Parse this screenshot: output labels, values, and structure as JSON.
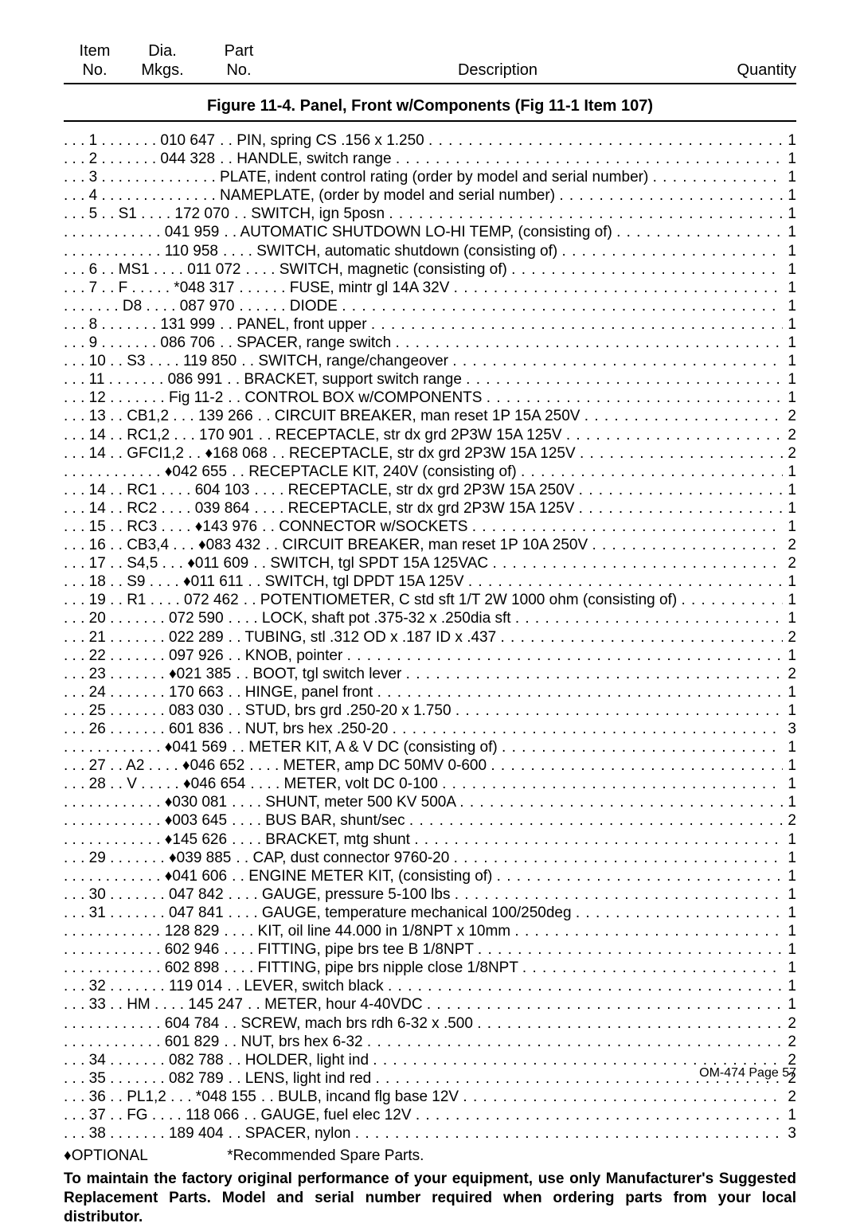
{
  "header": {
    "item_line1": "Item",
    "item_line2": "No.",
    "dia_line1": "Dia.",
    "dia_line2": "Mkgs.",
    "part_line1": "Part",
    "part_line2": "No.",
    "desc": "Description",
    "qty": "Quantity"
  },
  "figure_title": "Figure 11-4. Panel, Front w/Components (Fig 11-1 Item 107)",
  "footnote_optional": "♦OPTIONAL",
  "footnote_recommended": "*Recommended Spare Parts.",
  "advisory": "To maintain the factory original performance of your equipment, use only Manufacturer's Suggested Replacement Parts. Model and serial number required when ordering parts from your local distributor.",
  "page_footer": "OM-474 Page 57",
  "rows": [
    {
      "item": "1",
      "dia": "",
      "part": "010 647",
      "desc": "PIN, spring CS .156 x 1.250",
      "qty": "1",
      "indent": 1
    },
    {
      "item": "2",
      "dia": "",
      "part": "044 328",
      "desc": "HANDLE, switch range",
      "qty": "1",
      "indent": 1
    },
    {
      "item": "3",
      "dia": "",
      "part": "",
      "desc": "PLATE, indent control rating (order by model and serial number)",
      "qty": "1",
      "indent": 1,
      "no_dots_after_desc": true
    },
    {
      "item": "4",
      "dia": "",
      "part": "",
      "desc": "NAMEPLATE, (order by model and serial number)",
      "qty": "1",
      "indent": 1
    },
    {
      "item": "5",
      "dia": "S1",
      "part": "172 070",
      "desc": "SWITCH, ign 5posn",
      "qty": "1",
      "indent": 1
    },
    {
      "item": "",
      "dia": "",
      "part": "041 959",
      "desc": "AUTOMATIC SHUTDOWN LO-HI TEMP, (consisting of)",
      "qty": "1",
      "indent": 1
    },
    {
      "item": "",
      "dia": "",
      "part": "110 958",
      "desc": "SWITCH, automatic shutdown (consisting of)",
      "qty": "1",
      "indent": 2
    },
    {
      "item": "6",
      "dia": "MS1",
      "part": "011 072",
      "desc": "SWITCH, magnetic (consisting of)",
      "qty": "1",
      "indent": 2
    },
    {
      "item": "7",
      "dia": "F",
      "part": "*048 317",
      "desc": "FUSE, mintr gl 14A 32V",
      "qty": "1",
      "indent": 3
    },
    {
      "item": "",
      "dia": "D8",
      "part": "087 970",
      "desc": "DIODE",
      "qty": "1",
      "indent": 3
    },
    {
      "item": "8",
      "dia": "",
      "part": "131 999",
      "desc": "PANEL, front upper",
      "qty": "1",
      "indent": 1
    },
    {
      "item": "9",
      "dia": "",
      "part": "086 706",
      "desc": "SPACER, range switch",
      "qty": "1",
      "indent": 1
    },
    {
      "item": "10",
      "dia": "S3",
      "part": "119 850",
      "desc": "SWITCH, range/changeover",
      "qty": "1",
      "indent": 1
    },
    {
      "item": "11",
      "dia": "",
      "part": "086 991",
      "desc": "BRACKET, support switch range",
      "qty": "1",
      "indent": 1
    },
    {
      "item": "12",
      "dia": "",
      "part": "Fig 11-2",
      "desc": "CONTROL BOX w/COMPONENTS",
      "qty": "1",
      "indent": 1
    },
    {
      "item": "13",
      "dia": "CB1,2",
      "part": "139 266",
      "desc": "CIRCUIT BREAKER, man reset 1P 15A 250V",
      "qty": "2",
      "indent": 1
    },
    {
      "item": "14",
      "dia": "RC1,2",
      "part": "170 901",
      "desc": "RECEPTACLE, str dx grd 2P3W 15A 125V",
      "qty": "2",
      "indent": 1
    },
    {
      "item": "14",
      "dia": "GFCI1,2",
      "part": "♦168 068",
      "desc": "RECEPTACLE, str dx grd 2P3W 15A 125V",
      "qty": "2",
      "indent": 1
    },
    {
      "item": "",
      "dia": "",
      "part": "♦042 655",
      "desc": "RECEPTACLE KIT, 240V (consisting of)",
      "qty": "1",
      "indent": 1
    },
    {
      "item": "14",
      "dia": "RC1",
      "part": "604 103",
      "desc": "RECEPTACLE, str dx grd 2P3W 15A 250V",
      "qty": "1",
      "indent": 2
    },
    {
      "item": "14",
      "dia": "RC2",
      "part": "039 864",
      "desc": "RECEPTACLE, str dx grd 2P3W 15A 125V",
      "qty": "1",
      "indent": 2
    },
    {
      "item": "15",
      "dia": "RC3",
      "part": "♦143 976",
      "desc": "CONNECTOR w/SOCKETS",
      "qty": "1",
      "indent": 1
    },
    {
      "item": "16",
      "dia": "CB3,4",
      "part": "♦083 432",
      "desc": "CIRCUIT BREAKER, man reset 1P 10A 250V",
      "qty": "2",
      "indent": 1
    },
    {
      "item": "17",
      "dia": "S4,5",
      "part": "♦011 609",
      "desc": "SWITCH, tgl SPDT 15A 125VAC",
      "qty": "2",
      "indent": 1
    },
    {
      "item": "18",
      "dia": "S9",
      "part": "♦011 611",
      "desc": "SWITCH, tgl DPDT 15A 125V",
      "qty": "1",
      "indent": 1
    },
    {
      "item": "19",
      "dia": "R1",
      "part": "072 462",
      "desc": "POTENTIOMETER, C std sft 1/T 2W 1000 ohm (consisting of)",
      "qty": "1",
      "indent": 1
    },
    {
      "item": "20",
      "dia": "",
      "part": "072 590",
      "desc": "LOCK, shaft pot .375-32 x .250dia sft",
      "qty": "1",
      "indent": 2
    },
    {
      "item": "21",
      "dia": "",
      "part": "022 289",
      "desc": "TUBING, stl .312 OD x .187 ID x .437",
      "qty": "2",
      "indent": 1
    },
    {
      "item": "22",
      "dia": "",
      "part": "097 926",
      "desc": "KNOB, pointer",
      "qty": "1",
      "indent": 1
    },
    {
      "item": "23",
      "dia": "",
      "part": "♦021 385",
      "desc": "BOOT, tgl switch lever",
      "qty": "2",
      "indent": 1
    },
    {
      "item": "24",
      "dia": "",
      "part": "170 663",
      "desc": "HINGE, panel front",
      "qty": "1",
      "indent": 1
    },
    {
      "item": "25",
      "dia": "",
      "part": "083 030",
      "desc": "STUD, brs grd .250-20 x 1.750",
      "qty": "1",
      "indent": 1
    },
    {
      "item": "26",
      "dia": "",
      "part": "601 836",
      "desc": "NUT, brs hex .250-20",
      "qty": "3",
      "indent": 1
    },
    {
      "item": "",
      "dia": "",
      "part": "♦041 569",
      "desc": "METER KIT, A & V DC (consisting of)",
      "qty": "1",
      "indent": 1
    },
    {
      "item": "27",
      "dia": "A2",
      "part": "♦046 652",
      "desc": "METER, amp DC 50MV 0-600",
      "qty": "1",
      "indent": 2
    },
    {
      "item": "28",
      "dia": "V",
      "part": "♦046 654",
      "desc": "METER, volt DC 0-100",
      "qty": "1",
      "indent": 2
    },
    {
      "item": "",
      "dia": "",
      "part": "♦030 081",
      "desc": "SHUNT, meter 500 KV 500A",
      "qty": "1",
      "indent": 2
    },
    {
      "item": "",
      "dia": "",
      "part": "♦003 645",
      "desc": "BUS BAR, shunt/sec",
      "qty": "2",
      "indent": 2
    },
    {
      "item": "",
      "dia": "",
      "part": "♦145 626",
      "desc": "BRACKET, mtg shunt",
      "qty": "1",
      "indent": 2
    },
    {
      "item": "29",
      "dia": "",
      "part": "♦039 885",
      "desc": "CAP, dust connector 9760-20",
      "qty": "1",
      "indent": 1
    },
    {
      "item": "",
      "dia": "",
      "part": "♦041 606",
      "desc": "ENGINE METER KIT, (consisting of)",
      "qty": "1",
      "indent": 1
    },
    {
      "item": "30",
      "dia": "",
      "part": "047 842",
      "desc": "GAUGE, pressure 5-100 lbs",
      "qty": "1",
      "indent": 2
    },
    {
      "item": "31",
      "dia": "",
      "part": "047 841",
      "desc": "GAUGE, temperature mechanical 100/250deg",
      "qty": "1",
      "indent": 2
    },
    {
      "item": "",
      "dia": "",
      "part": "128 829",
      "desc": "KIT, oil line 44.000 in 1/8NPT x 10mm",
      "qty": "1",
      "indent": 2
    },
    {
      "item": "",
      "dia": "",
      "part": "602 946",
      "desc": "FITTING, pipe brs tee B 1/8NPT",
      "qty": "1",
      "indent": 2
    },
    {
      "item": "",
      "dia": "",
      "part": "602 898",
      "desc": "FITTING, pipe brs nipple close 1/8NPT",
      "qty": "1",
      "indent": 2
    },
    {
      "item": "32",
      "dia": "",
      "part": "119 014",
      "desc": "LEVER, switch black",
      "qty": "1",
      "indent": 1
    },
    {
      "item": "33",
      "dia": "HM",
      "part": "145 247",
      "desc": "METER, hour 4-40VDC",
      "qty": "1",
      "indent": 1
    },
    {
      "item": "",
      "dia": "",
      "part": "604 784",
      "desc": "SCREW, mach brs rdh 6-32 x .500",
      "qty": "2",
      "indent": 1
    },
    {
      "item": "",
      "dia": "",
      "part": "601 829",
      "desc": "NUT, brs hex 6-32",
      "qty": "2",
      "indent": 1
    },
    {
      "item": "34",
      "dia": "",
      "part": "082 788",
      "desc": "HOLDER, light ind",
      "qty": "2",
      "indent": 1
    },
    {
      "item": "35",
      "dia": "",
      "part": "082 789",
      "desc": "LENS, light ind red",
      "qty": "2",
      "indent": 1
    },
    {
      "item": "36",
      "dia": "PL1,2",
      "part": "*048 155",
      "desc": "BULB, incand flg base 12V",
      "qty": "2",
      "indent": 1
    },
    {
      "item": "37",
      "dia": "FG",
      "part": "118 066",
      "desc": "GAUGE, fuel elec 12V",
      "qty": "1",
      "indent": 1
    },
    {
      "item": "38",
      "dia": "",
      "part": "189 404",
      "desc": "SPACER, nylon",
      "qty": "3",
      "indent": 1
    }
  ]
}
